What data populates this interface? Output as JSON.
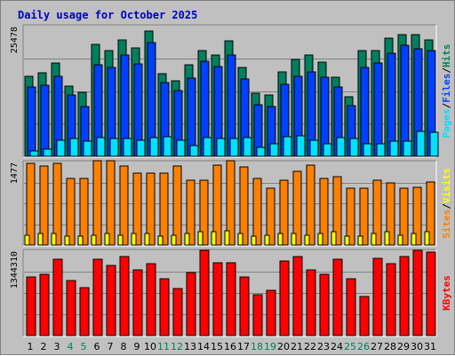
{
  "window": {
    "title": "Daily usage for October 2025"
  },
  "colors": {
    "hits": "#00805c",
    "files": "#0040ff",
    "pages": "#00e0ff",
    "visits": "#ffff00",
    "sites": "#ff8000",
    "kbytes": "#ff0000",
    "title": "#0000c8",
    "weekend_day": "#00805c",
    "weekday": "#000000",
    "separator": "#000000"
  },
  "chart_data": [
    {
      "type": "bar",
      "panel": "hits-files-pages",
      "y_max_label": "25478",
      "ylim": [
        0,
        25478
      ],
      "grid": true,
      "categories": [
        "1",
        "2",
        "3",
        "4",
        "5",
        "6",
        "7",
        "8",
        "9",
        "10",
        "11",
        "12",
        "13",
        "14",
        "15",
        "16",
        "17",
        "18",
        "19",
        "20",
        "21",
        "22",
        "23",
        "24",
        "25",
        "26",
        "27",
        "28",
        "29",
        "30",
        "31"
      ],
      "weekend": [
        false,
        false,
        false,
        true,
        true,
        false,
        false,
        false,
        false,
        false,
        true,
        true,
        false,
        false,
        false,
        false,
        false,
        true,
        true,
        false,
        false,
        false,
        false,
        false,
        true,
        true,
        false,
        false,
        false,
        false,
        false
      ],
      "legend": {
        "position": "right",
        "entries": [
          "Pages",
          "Files",
          "Hits"
        ],
        "separator": "/"
      },
      "series": [
        {
          "name": "Hits",
          "values": [
            15600,
            16300,
            18200,
            13700,
            12400,
            21800,
            20600,
            22700,
            21200,
            24400,
            16100,
            14800,
            17800,
            20700,
            19700,
            22500,
            17300,
            12300,
            12000,
            16500,
            18900,
            19800,
            18400,
            15500,
            11600,
            20600,
            20600,
            23000,
            23800,
            23700,
            22700
          ]
        },
        {
          "name": "Files",
          "values": [
            13600,
            13900,
            15600,
            11900,
            9700,
            17900,
            17400,
            19800,
            18000,
            22200,
            14300,
            12900,
            15200,
            18600,
            17500,
            19800,
            15100,
            10100,
            9700,
            14000,
            15600,
            16400,
            15400,
            13600,
            9800,
            17400,
            18200,
            20100,
            21600,
            20900,
            20700
          ]
        },
        {
          "name": "Pages",
          "values": [
            1000,
            1400,
            3100,
            3400,
            3000,
            3600,
            3400,
            3400,
            3100,
            3700,
            3800,
            3100,
            2000,
            3600,
            3500,
            3400,
            3600,
            1800,
            2400,
            3800,
            4000,
            3100,
            2500,
            3600,
            3500,
            2500,
            2400,
            2900,
            3000,
            4800,
            4700
          ]
        }
      ]
    },
    {
      "type": "bar",
      "panel": "visits-sites",
      "y_max_label": "1477",
      "ylim": [
        0,
        1477
      ],
      "grid": true,
      "categories": [
        "1",
        "2",
        "3",
        "4",
        "5",
        "6",
        "7",
        "8",
        "9",
        "10",
        "11",
        "12",
        "13",
        "14",
        "15",
        "16",
        "17",
        "18",
        "19",
        "20",
        "21",
        "22",
        "23",
        "24",
        "25",
        "26",
        "27",
        "28",
        "29",
        "30",
        "31"
      ],
      "legend": {
        "position": "right",
        "entries": [
          "Sites",
          "Visits"
        ],
        "separator": "/"
      },
      "series": [
        {
          "name": "Sites",
          "values": [
            1440,
            1400,
            1440,
            1180,
            1180,
            1500,
            1500,
            1400,
            1270,
            1280,
            1270,
            1400,
            1150,
            1150,
            1420,
            1500,
            1380,
            1180,
            1000,
            1150,
            1300,
            1410,
            1180,
            1210,
            1000,
            1000,
            1150,
            1100,
            1000,
            1020,
            1110
          ]
        },
        {
          "name": "Visits",
          "values": [
            180,
            200,
            200,
            150,
            150,
            180,
            200,
            180,
            200,
            200,
            150,
            180,
            200,
            230,
            230,
            250,
            200,
            150,
            180,
            200,
            200,
            180,
            200,
            230,
            150,
            150,
            200,
            230,
            180,
            200,
            230
          ]
        }
      ]
    },
    {
      "type": "bar",
      "panel": "kbytes",
      "y_max_label": "1344310",
      "ylim": [
        0,
        1344310
      ],
      "grid": true,
      "categories": [
        "1",
        "2",
        "3",
        "4",
        "5",
        "6",
        "7",
        "8",
        "9",
        "10",
        "11",
        "12",
        "13",
        "14",
        "15",
        "16",
        "17",
        "18",
        "19",
        "20",
        "21",
        "22",
        "23",
        "24",
        "25",
        "26",
        "27",
        "28",
        "29",
        "30",
        "31"
      ],
      "legend": {
        "position": "right",
        "entries": [
          "KBytes"
        ]
      },
      "series": [
        {
          "name": "KBytes",
          "values": [
            920000,
            970000,
            1200000,
            870000,
            750000,
            1210000,
            1110000,
            1250000,
            1030000,
            1140000,
            900000,
            740000,
            1000000,
            1340000,
            1150000,
            1150000,
            920000,
            640000,
            720000,
            1170000,
            1240000,
            1030000,
            960000,
            1200000,
            900000,
            620000,
            1220000,
            1140000,
            1240000,
            1340000,
            1320000
          ]
        }
      ]
    }
  ]
}
